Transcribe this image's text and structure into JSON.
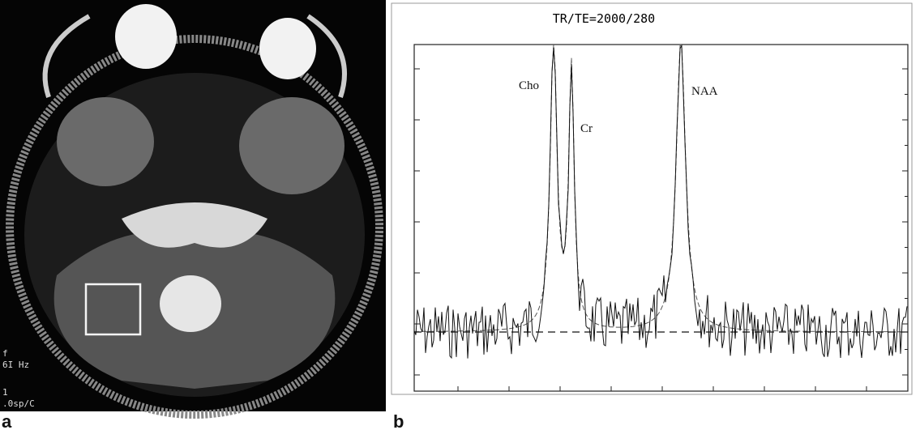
{
  "panels": [
    {
      "label": "a",
      "overlay_text": [
        "f",
        "6I Hz",
        "1",
        ".0sp/C"
      ]
    },
    {
      "label": "b",
      "title": "TR/TE=2000/280",
      "peaks": [
        "Cho",
        "Cr",
        "NAA"
      ]
    }
  ]
}
